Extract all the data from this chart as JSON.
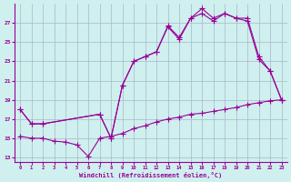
{
  "background_color": "#cff0ee",
  "grid_color": "#aab4cc",
  "line_color": "#990099",
  "xlabel": "Windchill (Refroidissement éolien,°C)",
  "xlim": [
    -0.5,
    23.5
  ],
  "ylim": [
    12.5,
    29.0
  ],
  "yticks": [
    13,
    15,
    17,
    19,
    21,
    23,
    25,
    27
  ],
  "xticks": [
    0,
    1,
    2,
    3,
    4,
    5,
    6,
    7,
    8,
    9,
    10,
    11,
    12,
    13,
    14,
    15,
    16,
    17,
    18,
    19,
    20,
    21,
    22,
    23
  ],
  "s1_x": [
    0,
    1,
    2,
    7,
    8,
    9,
    10,
    11,
    12,
    13,
    14,
    15,
    16,
    17,
    18,
    19,
    20,
    21,
    22,
    23
  ],
  "s1_y": [
    18.0,
    16.5,
    16.5,
    17.5,
    15.0,
    20.5,
    23.0,
    23.5,
    24.0,
    26.6,
    25.3,
    27.5,
    28.5,
    27.5,
    28.0,
    27.5,
    27.5,
    23.5,
    22.0,
    19.0
  ],
  "s2_x": [
    0,
    1,
    2,
    7,
    8,
    9,
    10,
    11,
    12,
    13,
    14,
    15,
    16,
    17,
    18,
    19,
    20,
    21,
    22,
    23
  ],
  "s2_y": [
    18.0,
    16.5,
    16.5,
    17.5,
    15.0,
    20.5,
    23.0,
    23.5,
    24.0,
    26.7,
    25.5,
    27.5,
    28.0,
    27.2,
    28.0,
    27.5,
    27.2,
    23.2,
    22.0,
    19.0
  ],
  "s3_x": [
    0,
    1,
    2,
    3,
    4,
    5,
    6,
    7,
    8,
    9,
    10,
    11,
    12,
    13,
    14,
    15,
    16,
    17,
    18,
    19,
    20,
    21,
    22,
    23
  ],
  "s3_y": [
    15.2,
    15.0,
    15.0,
    14.7,
    14.6,
    14.3,
    13.1,
    15.0,
    15.2,
    15.5,
    16.0,
    16.3,
    16.7,
    17.0,
    17.2,
    17.5,
    17.6,
    17.8,
    18.0,
    18.2,
    18.5,
    18.7,
    18.9,
    19.0
  ],
  "figwidth": 3.2,
  "figheight": 2.0,
  "dpi": 100
}
